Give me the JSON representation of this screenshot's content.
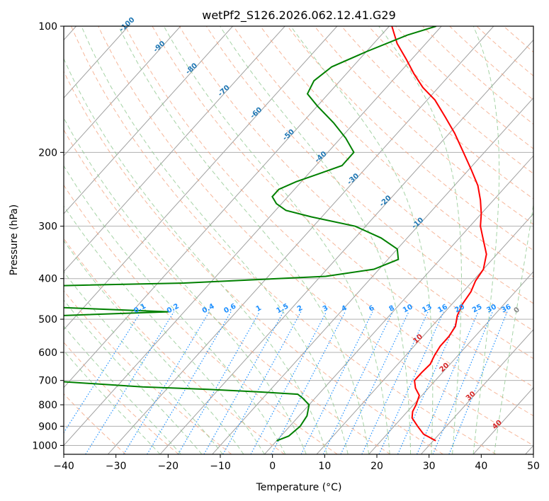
{
  "chart_data": {
    "type": "line",
    "title": "wetPf2_S126.2026.062.12.41.G29",
    "xlabel": "Temperature (°C)",
    "ylabel": "Pressure (hPa)",
    "xlim": [
      -40,
      50
    ],
    "ylim": [
      1050,
      100
    ],
    "y_scale": "log",
    "grid": true,
    "x_ticks": [
      -40,
      -30,
      -20,
      -10,
      0,
      10,
      20,
      30,
      40,
      50
    ],
    "y_ticks": [
      100,
      200,
      300,
      400,
      500,
      600,
      700,
      800,
      900,
      1000
    ],
    "series": [
      {
        "color": "#ff0000",
        "pressure": [
          975,
          940,
          900,
          860,
          830,
          800,
          760,
          730,
          700,
          670,
          640,
          610,
          580,
          550,
          520,
          490,
          460,
          430,
          405,
          380,
          350,
          320,
          300,
          280,
          260,
          240,
          220,
          200,
          180,
          165,
          150,
          140,
          130,
          120,
          110,
          100
        ],
        "temperature": [
          30.5,
          27.0,
          24.5,
          22.0,
          21.0,
          20.5,
          19.5,
          17.5,
          16.0,
          16.0,
          16.2,
          15.5,
          15.0,
          15.0,
          14.5,
          13.0,
          12.0,
          11.5,
          10.5,
          10.0,
          8.0,
          4.5,
          2.0,
          0.0,
          -2.5,
          -5.5,
          -9.5,
          -14.0,
          -19.0,
          -23.5,
          -28.5,
          -33.0,
          -37.0,
          -41.0,
          -45.5,
          -49.5
        ]
      },
      {
        "color": "#008000",
        "pressure": [
          975,
          950,
          900,
          850,
          800,
          770,
          755,
          745,
          735,
          725,
          700,
          680,
          500,
          480,
          460,
          420,
          410,
          395,
          380,
          360,
          340,
          320,
          300,
          285,
          275,
          265,
          255,
          245,
          235,
          225,
          215,
          200,
          185,
          170,
          155,
          145,
          135,
          125,
          115,
          105,
          100
        ],
        "temperature": [
          0.0,
          1.5,
          2.0,
          1.5,
          0.0,
          -2.5,
          -4.0,
          -12.0,
          -22.0,
          -35.0,
          -55.0,
          -75.0,
          -82.0,
          -43.0,
          -82.0,
          -84.0,
          -45.0,
          -19.0,
          -11.0,
          -8.0,
          -10.0,
          -15.0,
          -22.0,
          -32.0,
          -38.0,
          -41.0,
          -43.0,
          -43.0,
          -41.0,
          -38.0,
          -35.0,
          -35.0,
          -39.0,
          -44.0,
          -50.0,
          -54.0,
          -55.0,
          -54.0,
          -50.0,
          -45.0,
          -41.0
        ]
      }
    ],
    "dry_adiabat_labels": [
      "-100",
      "-90",
      "-80",
      "-70",
      "-60",
      "-50",
      "-40",
      "-30",
      "-20",
      "-10",
      "0",
      "10",
      "20",
      "30",
      "40"
    ],
    "mixing_ratio_labels": [
      "0.1",
      "0.2",
      "0.4",
      "0.6",
      "1",
      "1.5",
      "2",
      "3",
      "4",
      "6",
      "8",
      "10",
      "13",
      "16",
      "20",
      "25",
      "30",
      "36"
    ]
  },
  "colors": {
    "temperature": "#ff0000",
    "dewpoint": "#008000",
    "dry_adiabat": "#f4a582",
    "moist_adiabat": "#90c890",
    "mixing_ratio": "#1e90ff",
    "isotherm": "#a0a0a0",
    "dry_label_cold": "#1f77b4",
    "dry_label_warm": "#d62728"
  }
}
